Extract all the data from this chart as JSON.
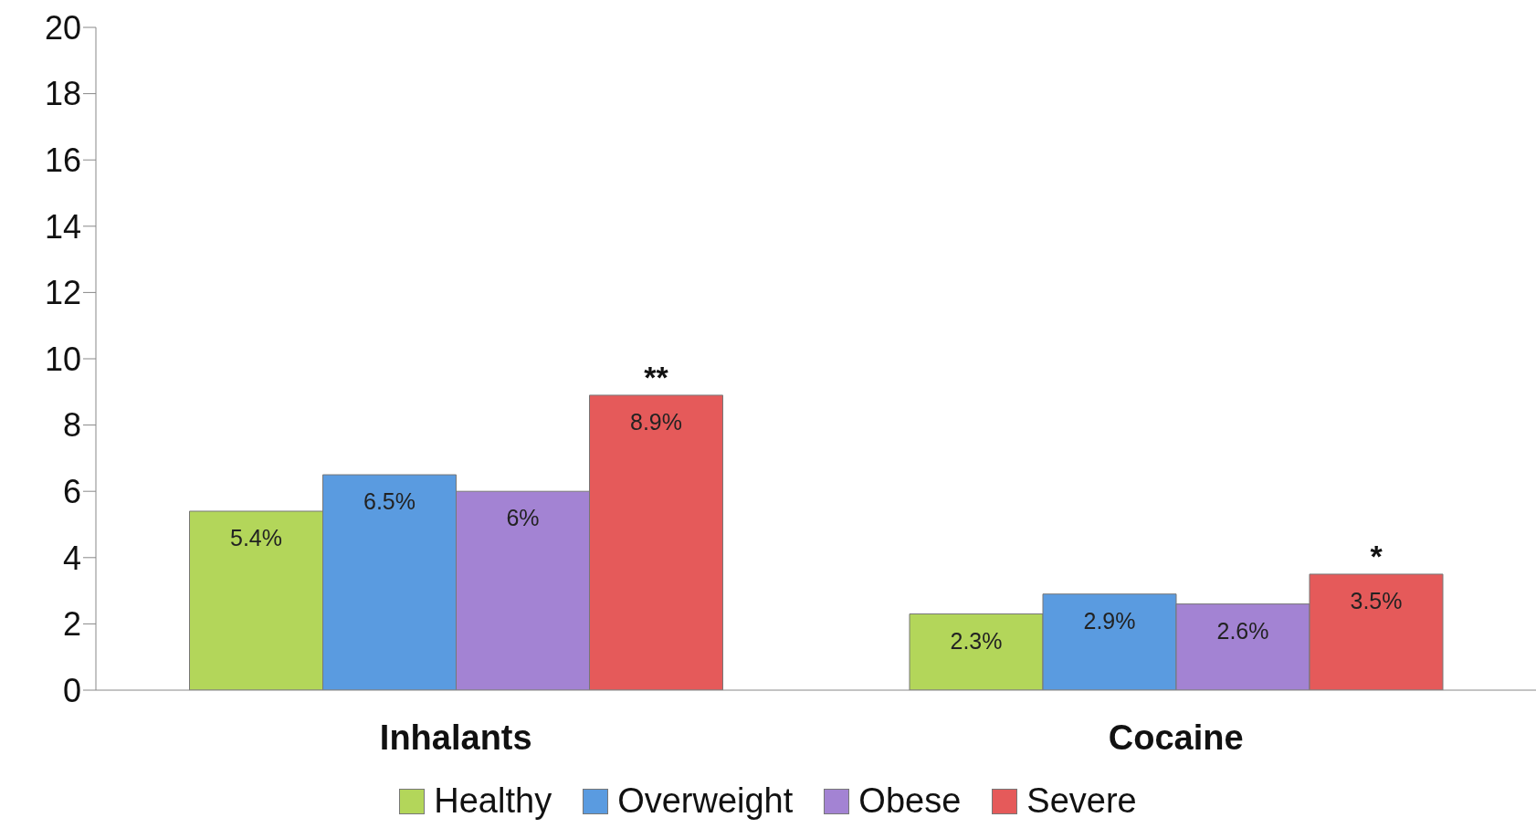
{
  "chart_data": {
    "type": "bar",
    "categories": [
      "Inhalants",
      "Cocaine"
    ],
    "series": [
      {
        "name": "Healthy",
        "color": "#b3d65a",
        "values": [
          5.4,
          2.3
        ],
        "value_labels": [
          "5.4%",
          "2.3%"
        ]
      },
      {
        "name": "Overweight",
        "color": "#5a9be0",
        "values": [
          6.5,
          2.9
        ],
        "value_labels": [
          "6.5%",
          "2.9%"
        ]
      },
      {
        "name": "Obese",
        "color": "#a383d3",
        "values": [
          6,
          2.6
        ],
        "value_labels": [
          "6%",
          "2.6%"
        ]
      },
      {
        "name": "Severe",
        "color": "#e55a5a",
        "values": [
          8.9,
          3.5
        ],
        "value_labels": [
          "8.9%",
          "3.5%"
        ]
      }
    ],
    "ylim": [
      0,
      20
    ],
    "yticks": [
      0,
      2,
      4,
      6,
      8,
      10,
      12,
      14,
      16,
      18,
      20
    ],
    "grid": false,
    "legend": "bottom",
    "annotations": [
      "**",
      "*"
    ]
  }
}
